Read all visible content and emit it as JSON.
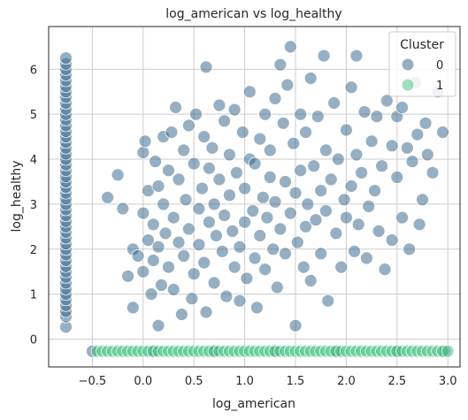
{
  "chart_data": {
    "type": "scatter",
    "title": "log_american vs log_healthy",
    "xlabel": "log_american",
    "ylabel": "log_healthy",
    "xlim": [
      -0.93,
      3.12
    ],
    "ylim": [
      -0.62,
      6.95
    ],
    "x_ticks": [
      "−0.5",
      "0.0",
      "0.5",
      "1.0",
      "1.5",
      "2.0",
      "2.5",
      "3.0"
    ],
    "x_tick_values": [
      -0.5,
      0.0,
      0.5,
      1.0,
      1.5,
      2.0,
      2.5,
      3.0
    ],
    "y_ticks": [
      "0",
      "1",
      "2",
      "3",
      "4",
      "5",
      "6"
    ],
    "y_tick_values": [
      0,
      1,
      2,
      3,
      4,
      5,
      6
    ],
    "grid": true,
    "legend": {
      "title": "Cluster",
      "placement": "top-right"
    },
    "series": [
      {
        "name": "0",
        "color": "#2f5f85",
        "description_points": "left column at x≈-0.76 spanning y 0.3–6.3; main cloud x -0.4–3.0, y 0.5–6.5; several at y≈-0.27",
        "points": [
          [
            -0.76,
            0.27
          ],
          [
            -0.76,
            0.5
          ],
          [
            -0.76,
            0.62
          ],
          [
            -0.76,
            0.75
          ],
          [
            -0.76,
            0.88
          ],
          [
            -0.76,
            1.0
          ],
          [
            -0.76,
            1.12
          ],
          [
            -0.76,
            1.25
          ],
          [
            -0.76,
            1.38
          ],
          [
            -0.76,
            1.5
          ],
          [
            -0.76,
            1.62
          ],
          [
            -0.76,
            1.75
          ],
          [
            -0.76,
            1.88
          ],
          [
            -0.76,
            2.0
          ],
          [
            -0.76,
            2.12
          ],
          [
            -0.76,
            2.25
          ],
          [
            -0.76,
            2.38
          ],
          [
            -0.76,
            2.5
          ],
          [
            -0.76,
            2.62
          ],
          [
            -0.76,
            2.75
          ],
          [
            -0.76,
            2.88
          ],
          [
            -0.76,
            3.0
          ],
          [
            -0.76,
            3.12
          ],
          [
            -0.76,
            3.25
          ],
          [
            -0.76,
            3.38
          ],
          [
            -0.76,
            3.5
          ],
          [
            -0.76,
            3.62
          ],
          [
            -0.76,
            3.75
          ],
          [
            -0.76,
            3.88
          ],
          [
            -0.76,
            4.0
          ],
          [
            -0.76,
            4.12
          ],
          [
            -0.76,
            4.25
          ],
          [
            -0.76,
            4.38
          ],
          [
            -0.76,
            4.5
          ],
          [
            -0.76,
            4.62
          ],
          [
            -0.76,
            4.75
          ],
          [
            -0.76,
            4.88
          ],
          [
            -0.76,
            5.0
          ],
          [
            -0.76,
            5.12
          ],
          [
            -0.76,
            5.25
          ],
          [
            -0.76,
            5.38
          ],
          [
            -0.76,
            5.5
          ],
          [
            -0.76,
            5.62
          ],
          [
            -0.76,
            5.75
          ],
          [
            -0.76,
            5.88
          ],
          [
            -0.76,
            6.0
          ],
          [
            -0.76,
            6.12
          ],
          [
            -0.76,
            6.25
          ],
          [
            -0.35,
            3.15
          ],
          [
            -0.25,
            3.65
          ],
          [
            -0.2,
            2.9
          ],
          [
            -0.15,
            1.4
          ],
          [
            -0.1,
            0.7
          ],
          [
            -0.1,
            2.0
          ],
          [
            -0.05,
            1.85
          ],
          [
            0.0,
            4.15
          ],
          [
            0.0,
            2.8
          ],
          [
            0.0,
            1.5
          ],
          [
            0.02,
            4.4
          ],
          [
            0.05,
            2.2
          ],
          [
            0.05,
            3.3
          ],
          [
            0.08,
            1.0
          ],
          [
            0.1,
            2.55
          ],
          [
            0.1,
            1.75
          ],
          [
            0.12,
            3.95
          ],
          [
            0.15,
            3.4
          ],
          [
            0.15,
            2.05
          ],
          [
            0.15,
            0.3
          ],
          [
            0.18,
            1.2
          ],
          [
            0.2,
            4.5
          ],
          [
            0.2,
            3.0
          ],
          [
            0.22,
            2.35
          ],
          [
            0.25,
            1.6
          ],
          [
            0.25,
            3.75
          ],
          [
            0.28,
            4.6
          ],
          [
            0.3,
            2.7
          ],
          [
            0.3,
            1.1
          ],
          [
            0.32,
            5.15
          ],
          [
            0.35,
            3.55
          ],
          [
            0.35,
            2.15
          ],
          [
            0.38,
            0.55
          ],
          [
            0.4,
            4.2
          ],
          [
            0.4,
            1.85
          ],
          [
            0.42,
            3.1
          ],
          [
            0.45,
            2.45
          ],
          [
            0.45,
            4.75
          ],
          [
            0.48,
            0.9
          ],
          [
            0.5,
            3.9
          ],
          [
            0.5,
            1.45
          ],
          [
            0.52,
            5.0
          ],
          [
            0.55,
            2.9
          ],
          [
            0.55,
            2.1
          ],
          [
            0.58,
            3.35
          ],
          [
            0.6,
            4.5
          ],
          [
            0.6,
            1.7
          ],
          [
            0.62,
            6.05
          ],
          [
            0.62,
            0.6
          ],
          [
            0.65,
            2.6
          ],
          [
            0.65,
            3.8
          ],
          [
            0.68,
            4.25
          ],
          [
            0.7,
            1.25
          ],
          [
            0.7,
            3.0
          ],
          [
            0.72,
            2.3
          ],
          [
            0.75,
            5.2
          ],
          [
            0.75,
            3.55
          ],
          [
            0.78,
            1.95
          ],
          [
            0.8,
            4.85
          ],
          [
            0.8,
            2.75
          ],
          [
            0.82,
            0.95
          ],
          [
            0.85,
            3.2
          ],
          [
            0.85,
            4.1
          ],
          [
            0.88,
            2.4
          ],
          [
            0.9,
            1.6
          ],
          [
            0.9,
            5.1
          ],
          [
            0.92,
            3.7
          ],
          [
            0.95,
            2.05
          ],
          [
            0.95,
            0.85
          ],
          [
            0.98,
            4.6
          ],
          [
            1.0,
            3.35
          ],
          [
            1.0,
            2.6
          ],
          [
            1.02,
            1.35
          ],
          [
            1.05,
            4.0
          ],
          [
            1.05,
            5.5
          ],
          [
            1.08,
            2.85
          ],
          [
            1.1,
            3.9
          ],
          [
            1.1,
            1.8
          ],
          [
            1.12,
            0.7
          ],
          [
            1.15,
            4.45
          ],
          [
            1.15,
            2.3
          ],
          [
            1.18,
            3.15
          ],
          [
            1.2,
            5.0
          ],
          [
            1.2,
            1.55
          ],
          [
            1.22,
            2.7
          ],
          [
            1.25,
            3.6
          ],
          [
            1.25,
            4.2
          ],
          [
            1.28,
            2.0
          ],
          [
            1.3,
            5.35
          ],
          [
            1.3,
            3.05
          ],
          [
            1.32,
            1.15
          ],
          [
            1.35,
            6.1
          ],
          [
            1.35,
            2.45
          ],
          [
            1.38,
            4.8
          ],
          [
            1.4,
            3.5
          ],
          [
            1.4,
            1.9
          ],
          [
            1.42,
            5.65
          ],
          [
            1.45,
            2.8
          ],
          [
            1.45,
            6.5
          ],
          [
            1.48,
            4.35
          ],
          [
            1.5,
            3.25
          ],
          [
            1.5,
            0.3
          ],
          [
            1.52,
            2.15
          ],
          [
            1.55,
            5.0
          ],
          [
            1.55,
            3.75
          ],
          [
            1.58,
            1.6
          ],
          [
            1.6,
            4.6
          ],
          [
            1.6,
            2.5
          ],
          [
            1.62,
            3.0
          ],
          [
            1.65,
            5.8
          ],
          [
            1.65,
            1.3
          ],
          [
            1.68,
            3.85
          ],
          [
            1.7,
            2.65
          ],
          [
            1.72,
            4.95
          ],
          [
            1.75,
            3.3
          ],
          [
            1.75,
            1.9
          ],
          [
            1.78,
            6.3
          ],
          [
            1.8,
            4.2
          ],
          [
            1.8,
            2.85
          ],
          [
            1.82,
            0.85
          ],
          [
            1.85,
            3.55
          ],
          [
            1.88,
            5.25
          ],
          [
            1.9,
            2.35
          ],
          [
            1.92,
            4.0
          ],
          [
            1.95,
            1.6
          ],
          [
            1.98,
            3.1
          ],
          [
            2.0,
            4.65
          ],
          [
            2.0,
            2.7
          ],
          [
            2.05,
            5.6
          ],
          [
            2.05,
            3.4
          ],
          [
            2.08,
            1.95
          ],
          [
            2.1,
            6.3
          ],
          [
            2.1,
            4.1
          ],
          [
            2.12,
            2.55
          ],
          [
            2.15,
            3.7
          ],
          [
            2.18,
            5.05
          ],
          [
            2.2,
            1.8
          ],
          [
            2.22,
            2.95
          ],
          [
            2.25,
            4.4
          ],
          [
            2.28,
            3.3
          ],
          [
            2.3,
            4.95
          ],
          [
            2.32,
            2.4
          ],
          [
            2.35,
            3.85
          ],
          [
            2.38,
            1.55
          ],
          [
            2.4,
            5.3
          ],
          [
            2.45,
            4.3
          ],
          [
            2.45,
            2.2
          ],
          [
            2.5,
            3.6
          ],
          [
            2.5,
            4.95
          ],
          [
            2.55,
            2.7
          ],
          [
            2.55,
            5.15
          ],
          [
            2.6,
            4.25
          ],
          [
            2.62,
            2.0
          ],
          [
            2.65,
            3.95
          ],
          [
            2.68,
            5.7
          ],
          [
            2.7,
            4.55
          ],
          [
            2.72,
            2.55
          ],
          [
            2.75,
            3.1
          ],
          [
            2.78,
            4.8
          ],
          [
            2.8,
            4.1
          ],
          [
            2.85,
            3.7
          ],
          [
            2.9,
            5.5
          ],
          [
            2.95,
            4.6
          ],
          [
            -0.5,
            -0.27
          ],
          [
            0.1,
            -0.27
          ],
          [
            0.7,
            -0.27
          ],
          [
            1.3,
            -0.27
          ],
          [
            1.9,
            -0.27
          ],
          [
            2.5,
            -0.27
          ],
          [
            2.97,
            -0.27
          ]
        ]
      },
      {
        "name": "1",
        "color": "#3fbf7f",
        "description_points": "horizontal band at y≈-0.27 spanning x -0.45 to 3.0",
        "points": [
          [
            -0.45,
            -0.27
          ],
          [
            -0.4,
            -0.27
          ],
          [
            -0.35,
            -0.27
          ],
          [
            -0.3,
            -0.27
          ],
          [
            -0.25,
            -0.27
          ],
          [
            -0.2,
            -0.27
          ],
          [
            -0.15,
            -0.27
          ],
          [
            -0.1,
            -0.27
          ],
          [
            -0.05,
            -0.27
          ],
          [
            0.0,
            -0.27
          ],
          [
            0.05,
            -0.27
          ],
          [
            0.1,
            -0.27
          ],
          [
            0.15,
            -0.27
          ],
          [
            0.2,
            -0.27
          ],
          [
            0.25,
            -0.27
          ],
          [
            0.3,
            -0.27
          ],
          [
            0.35,
            -0.27
          ],
          [
            0.4,
            -0.27
          ],
          [
            0.45,
            -0.27
          ],
          [
            0.5,
            -0.27
          ],
          [
            0.55,
            -0.27
          ],
          [
            0.6,
            -0.27
          ],
          [
            0.65,
            -0.27
          ],
          [
            0.7,
            -0.27
          ],
          [
            0.75,
            -0.27
          ],
          [
            0.8,
            -0.27
          ],
          [
            0.85,
            -0.27
          ],
          [
            0.9,
            -0.27
          ],
          [
            0.95,
            -0.27
          ],
          [
            1.0,
            -0.27
          ],
          [
            1.05,
            -0.27
          ],
          [
            1.1,
            -0.27
          ],
          [
            1.15,
            -0.27
          ],
          [
            1.2,
            -0.27
          ],
          [
            1.25,
            -0.27
          ],
          [
            1.3,
            -0.27
          ],
          [
            1.35,
            -0.27
          ],
          [
            1.4,
            -0.27
          ],
          [
            1.45,
            -0.27
          ],
          [
            1.5,
            -0.27
          ],
          [
            1.55,
            -0.27
          ],
          [
            1.6,
            -0.27
          ],
          [
            1.65,
            -0.27
          ],
          [
            1.7,
            -0.27
          ],
          [
            1.75,
            -0.27
          ],
          [
            1.8,
            -0.27
          ],
          [
            1.85,
            -0.27
          ],
          [
            1.9,
            -0.27
          ],
          [
            1.95,
            -0.27
          ],
          [
            2.0,
            -0.27
          ],
          [
            2.05,
            -0.27
          ],
          [
            2.1,
            -0.27
          ],
          [
            2.15,
            -0.27
          ],
          [
            2.2,
            -0.27
          ],
          [
            2.25,
            -0.27
          ],
          [
            2.3,
            -0.27
          ],
          [
            2.35,
            -0.27
          ],
          [
            2.4,
            -0.27
          ],
          [
            2.45,
            -0.27
          ],
          [
            2.5,
            -0.27
          ],
          [
            2.55,
            -0.27
          ],
          [
            2.6,
            -0.27
          ],
          [
            2.65,
            -0.27
          ],
          [
            2.7,
            -0.27
          ],
          [
            2.75,
            -0.27
          ],
          [
            2.8,
            -0.27
          ],
          [
            2.85,
            -0.27
          ],
          [
            2.9,
            -0.27
          ],
          [
            2.95,
            -0.27
          ],
          [
            3.0,
            -0.27
          ]
        ]
      }
    ]
  }
}
